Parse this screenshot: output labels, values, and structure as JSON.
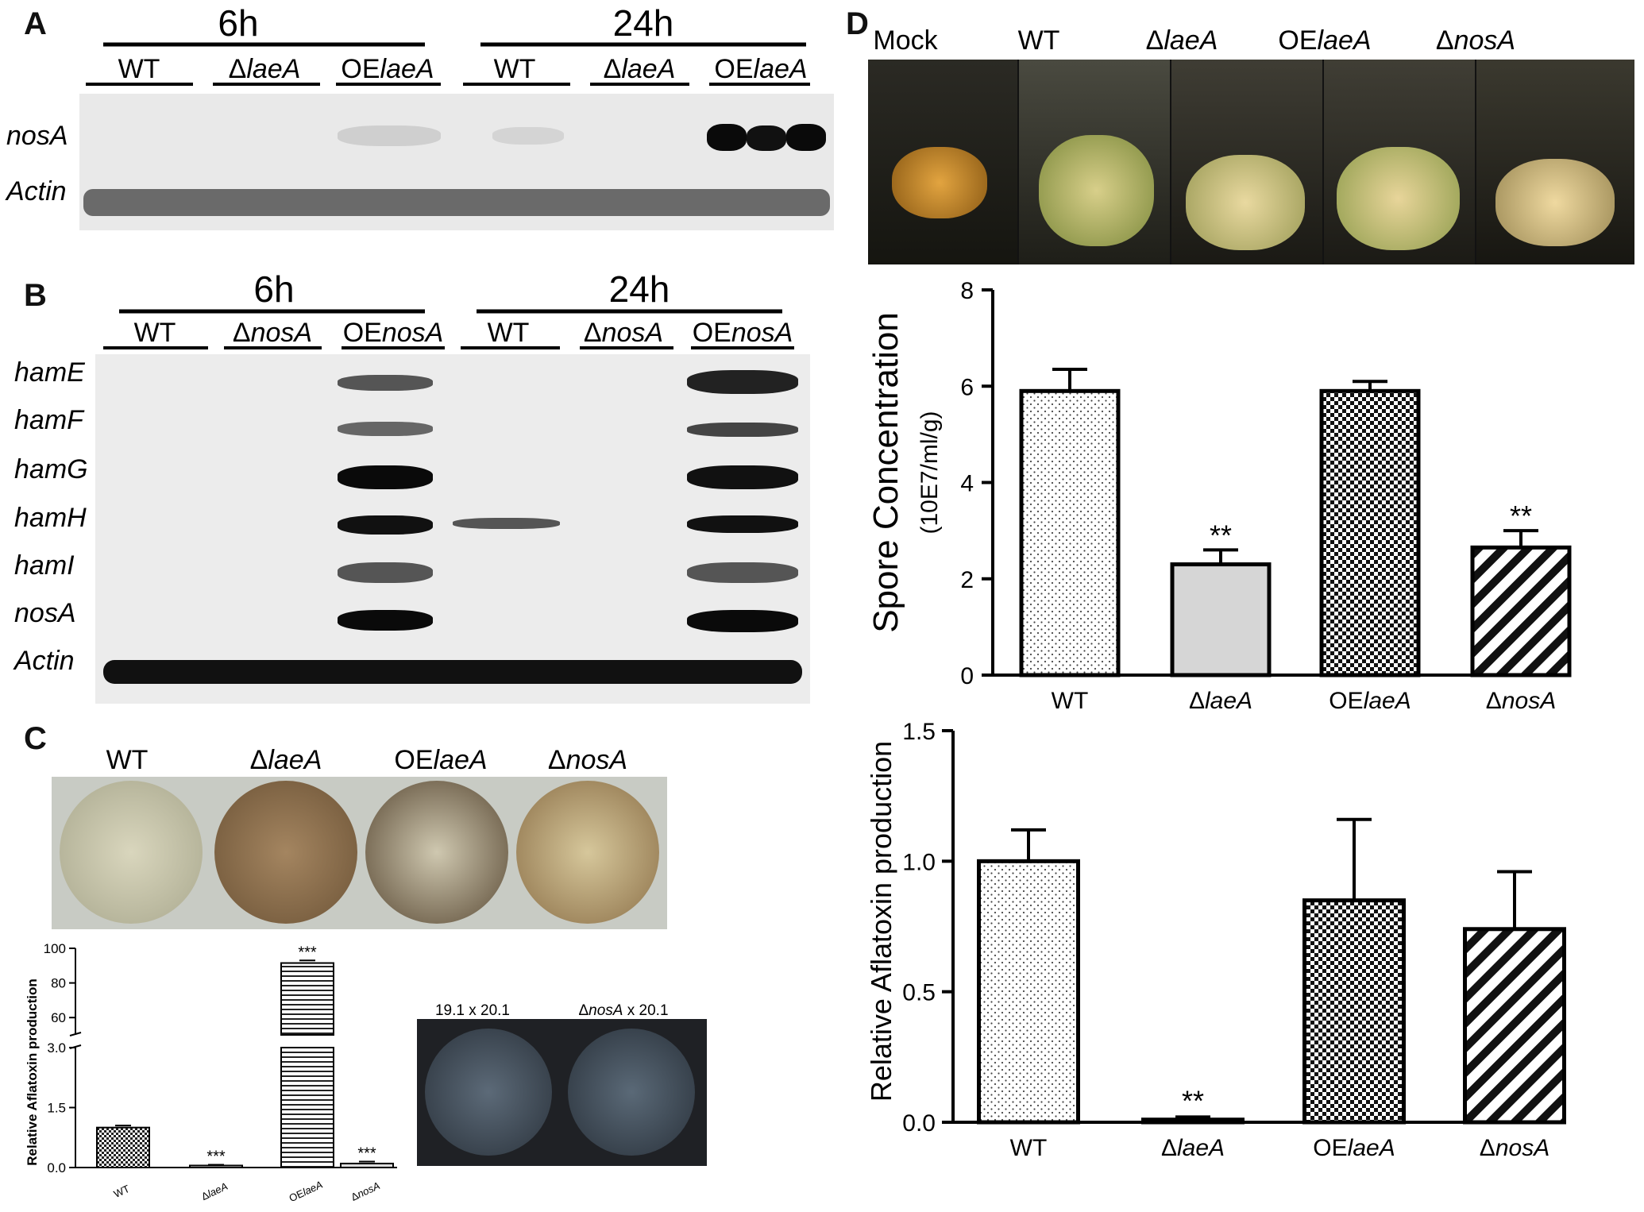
{
  "panels": {
    "a": "A",
    "b": "B",
    "c": "C",
    "d": "D"
  },
  "panel_a": {
    "times": [
      "6h",
      "24h"
    ],
    "strains": [
      "WT",
      "Δ",
      "laeA",
      "OE",
      "laeA"
    ],
    "rows": [
      "nosA",
      "Actin"
    ]
  },
  "panel_b": {
    "times": [
      "6h",
      "24h"
    ],
    "strains_wt": "WT",
    "strains_delta": "Δ",
    "strains_nos": "nosA",
    "strains_oe": "OE",
    "rows": [
      "hamE",
      "hamF",
      "hamG",
      "hamH",
      "hamI",
      "nosA",
      "Actin"
    ]
  },
  "panel_c": {
    "plate_labels": [
      "WT",
      "Δ",
      "laeA",
      "OE",
      "laeA",
      "Δ",
      "nosA"
    ],
    "cross_labels": [
      "19.1 x 20.1",
      "Δ",
      "nosA",
      " x 20.1"
    ]
  },
  "panel_d": {
    "jar_labels": [
      "Mock",
      "WT",
      "Δ",
      "laeA",
      "OE",
      "laeA",
      "Δ",
      "nosA"
    ]
  },
  "chart_data": [
    {
      "type": "bar",
      "panel": "C",
      "categories": [
        "WT",
        "ΔlaeA",
        "OElaeA",
        "ΔnosA"
      ],
      "values": [
        1.0,
        0.05,
        91.5,
        0.1
      ],
      "errors": [
        0.05,
        0.02,
        1.5,
        0.05
      ],
      "significance": [
        "",
        "***",
        "***",
        "***"
      ],
      "ylabel": "Relative Aflatoxin production",
      "yticks_lower": [
        "0.0",
        "1.5",
        "3.0"
      ],
      "yticks_upper": [
        "60",
        "80",
        "100"
      ],
      "ylim_lower": [
        0,
        3.0
      ],
      "ylim_upper": [
        50,
        100
      ],
      "broken_axis": true
    },
    {
      "type": "bar",
      "panel": "D-top",
      "categories": [
        "WT",
        "ΔlaeA",
        "OElaeA",
        "ΔnosA"
      ],
      "values": [
        5.9,
        2.3,
        5.9,
        2.65
      ],
      "errors": [
        0.45,
        0.3,
        0.2,
        0.35
      ],
      "significance": [
        "",
        "**",
        "",
        "**"
      ],
      "ylabel": "Spore Concentration",
      "ylabel_unit": "(10E7/ml/g)",
      "yticks": [
        "0",
        "2",
        "4",
        "6",
        "8"
      ],
      "ylim": [
        0,
        8
      ]
    },
    {
      "type": "bar",
      "panel": "D-bottom",
      "categories": [
        "WT",
        "ΔlaeA",
        "OElaeA",
        "ΔnosA"
      ],
      "values": [
        1.0,
        0.01,
        0.85,
        0.74
      ],
      "errors": [
        0.12,
        0.01,
        0.31,
        0.22
      ],
      "significance": [
        "",
        "**",
        "",
        ""
      ],
      "ylabel": "Relative Aflatoxin production",
      "yticks": [
        "0.0",
        "0.5",
        "1.0",
        "1.5"
      ],
      "ylim": [
        0,
        1.5
      ]
    }
  ],
  "colors": {
    "band_dark": "#0a0a0a",
    "band_light": "#8a8a8a",
    "blot_bg": "#e8e8e8",
    "bar_outline": "#000000",
    "delta_laeA_fill": "#d6d6d6"
  }
}
